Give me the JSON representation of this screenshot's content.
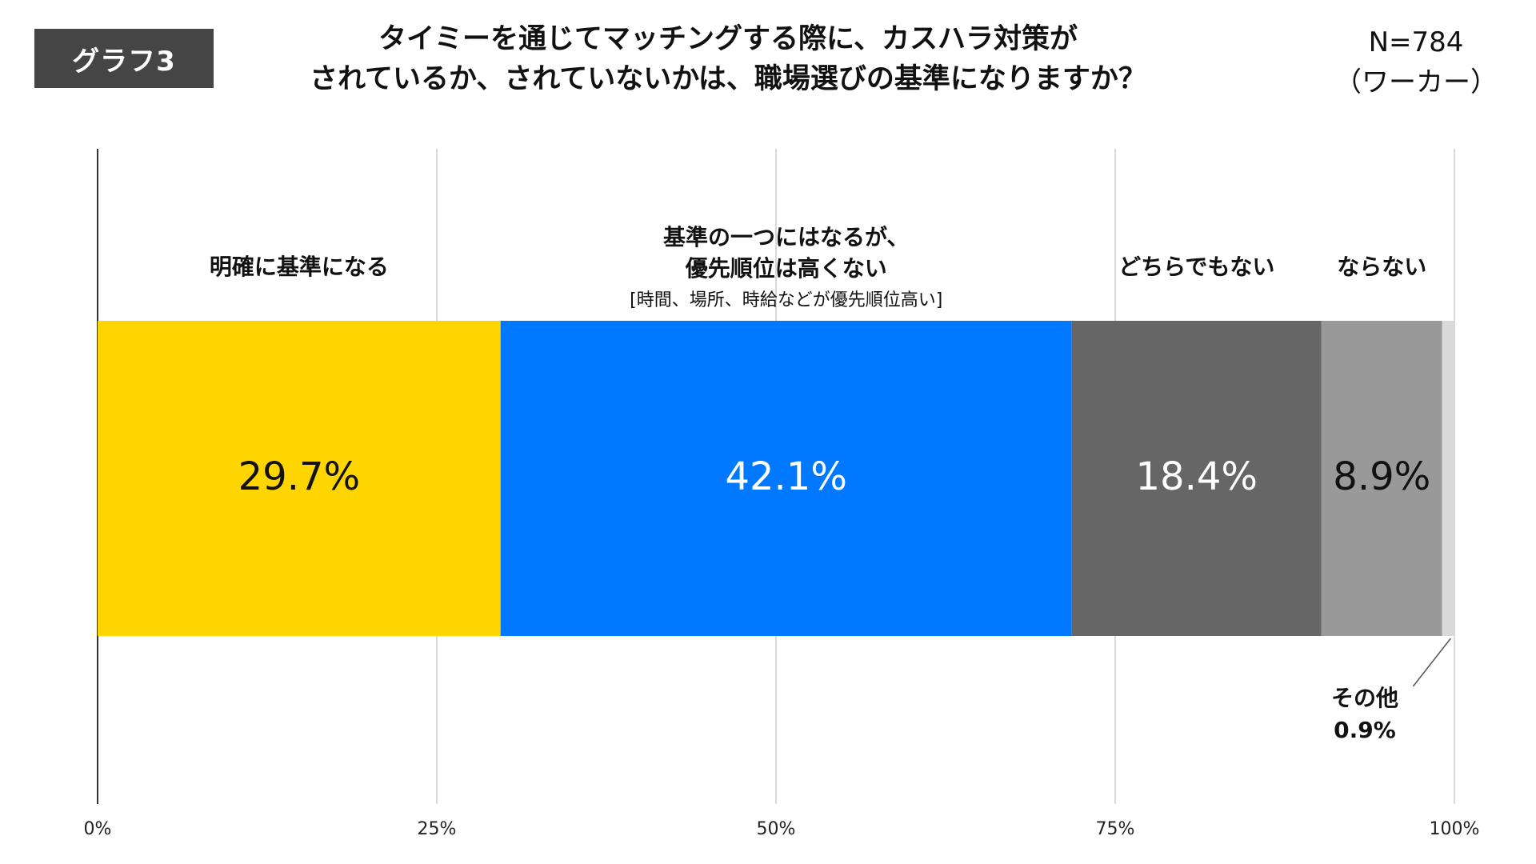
{
  "badge": "グラフ3",
  "title_lines": [
    "タイミーを通じてマッチングする際に、カスハラ対策が",
    "されているか、されていないかは、職場選びの基準になりますか？"
  ],
  "sample_lines": [
    "N=784",
    "（ワーカー）"
  ],
  "chart_data": {
    "type": "bar",
    "orientation": "horizontal-stacked-100",
    "xlim": [
      0,
      100
    ],
    "ticks": [
      0,
      25,
      50,
      75,
      100
    ],
    "tick_labels": [
      "0%",
      "25%",
      "50%",
      "75%",
      "100%"
    ],
    "grid": true,
    "segments": [
      {
        "label_lines": [
          "明確に基準になる"
        ],
        "sublabel": "",
        "value": 29.7,
        "value_label": "29.7%",
        "color": "#FFD500",
        "text_color": "#111111"
      },
      {
        "label_lines": [
          "基準の一つにはなるが、",
          "優先順位は高くない"
        ],
        "sublabel": "[時間、場所、時給などが優先順位高い]",
        "value": 42.1,
        "value_label": "42.1%",
        "color": "#0078FF",
        "text_color": "#ffffff"
      },
      {
        "label_lines": [
          "どちらでもない"
        ],
        "sublabel": "",
        "value": 18.4,
        "value_label": "18.4%",
        "color": "#666666",
        "text_color": "#ffffff"
      },
      {
        "label_lines": [
          "ならない"
        ],
        "sublabel": "",
        "value": 8.9,
        "value_label": "8.9%",
        "color": "#999999",
        "text_color": "#111111"
      },
      {
        "label_lines": [
          "その他"
        ],
        "sublabel": "",
        "value": 0.9,
        "value_label": "0.9%",
        "color": "#D9D9D9",
        "text_color": "#111111",
        "callout": true
      }
    ]
  }
}
